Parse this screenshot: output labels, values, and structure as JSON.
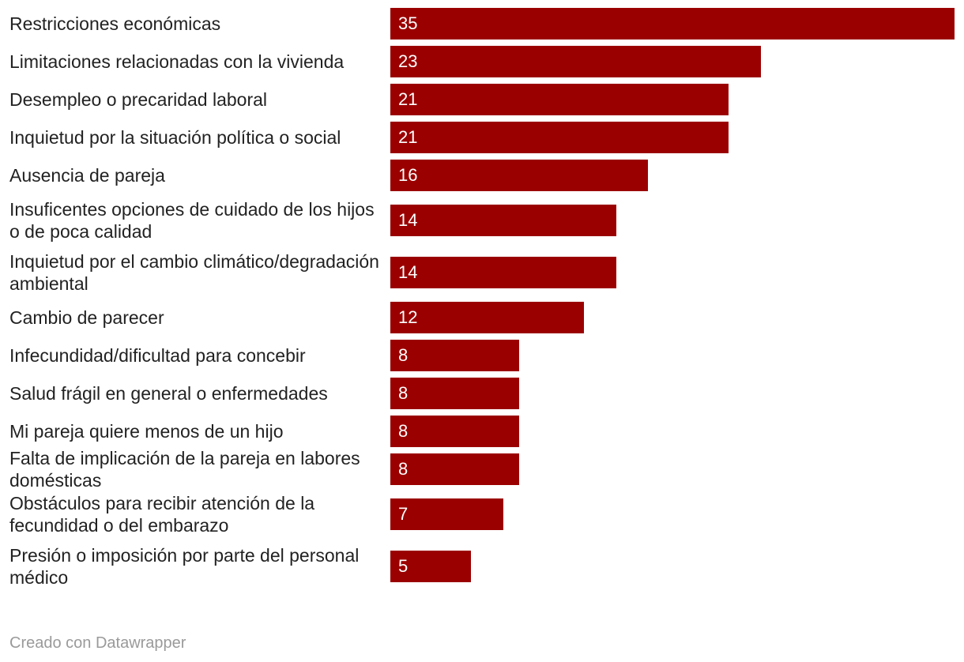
{
  "chart_data": {
    "type": "bar",
    "orientation": "horizontal",
    "categories": [
      "Restricciones económicas",
      "Limitaciones relacionadas con la vivienda",
      "Desempleo o precaridad laboral",
      "Inquietud por la situación política o social",
      "Ausencia de pareja",
      "Insuficentes opciones de cuidado de los hijos o de poca calidad",
      "Inquietud por el cambio climático/degradación ambiental",
      "Cambio de parecer",
      "Infecundidad/dificultad para concebir",
      "Salud frágil en general o enfermedades",
      "Mi pareja quiere menos de un hijo",
      "Falta de implicación de la pareja en labores domésticas",
      "Obstáculos para recibir atención de la fecundidad o del embarazo",
      "Presión o imposición por parte del personal médico"
    ],
    "values": [
      35,
      23,
      21,
      21,
      16,
      14,
      14,
      12,
      8,
      8,
      8,
      8,
      7,
      5
    ],
    "xlim": [
      0,
      35
    ],
    "bar_color": "#9b0000",
    "value_labels": "inside-left",
    "grid": false
  },
  "footer": {
    "credit": "Creado con Datawrapper"
  }
}
